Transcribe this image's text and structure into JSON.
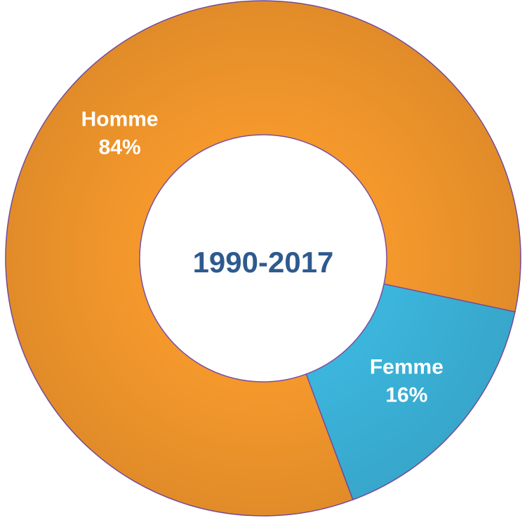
{
  "chart_data": {
    "type": "donut",
    "title": "1990-2017",
    "categories": [
      "Homme",
      "Femme"
    ],
    "values": [
      84,
      16
    ],
    "value_labels": [
      "84%",
      "16%"
    ],
    "colors": [
      "#f4982c",
      "#3cb5dc"
    ]
  }
}
